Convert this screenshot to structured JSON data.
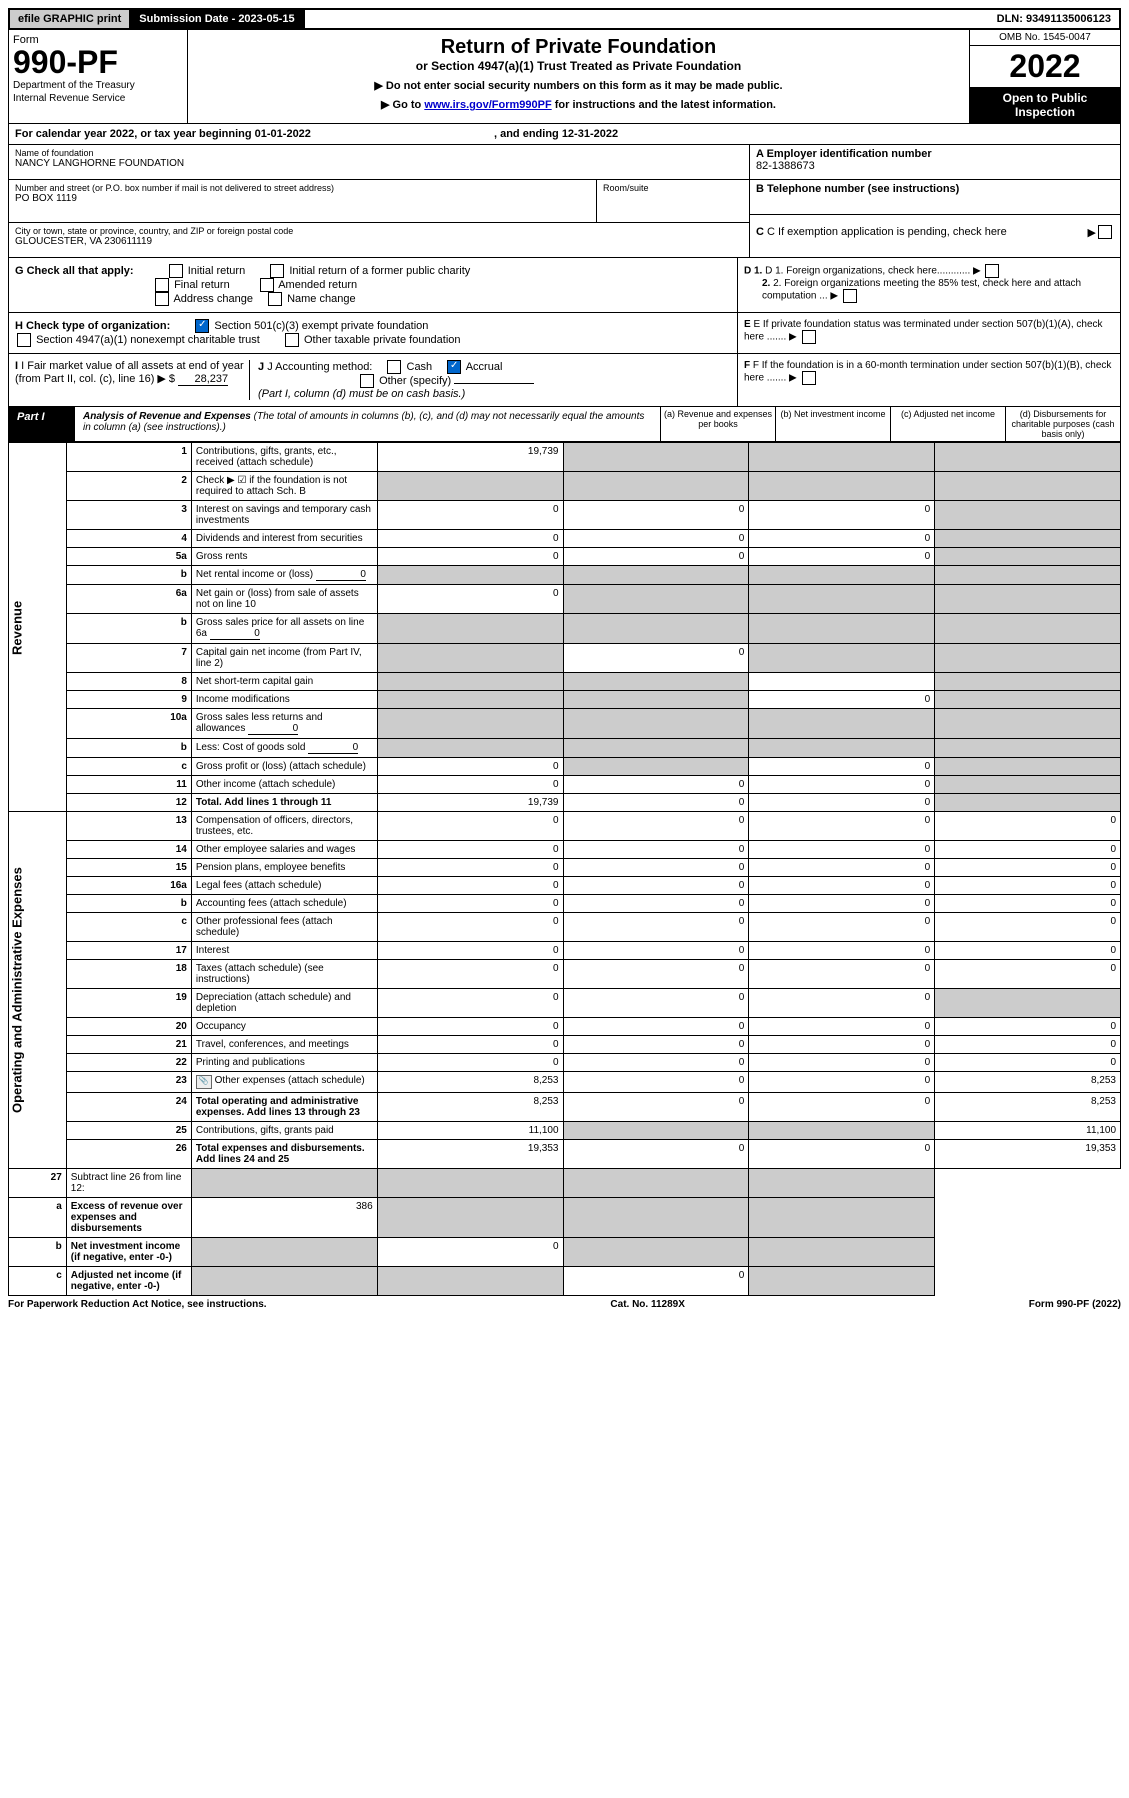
{
  "topbar": {
    "efile": "efile GRAPHIC print",
    "subdate": "Submission Date - 2023-05-15",
    "dln": "DLN: 93491135006123"
  },
  "header": {
    "form": "Form",
    "num": "990-PF",
    "dept": "Department of the Treasury",
    "irs": "Internal Revenue Service",
    "title": "Return of Private Foundation",
    "subtitle": "or Section 4947(a)(1) Trust Treated as Private Foundation",
    "arrow1": "▶ Do not enter social security numbers on this form as it may be made public.",
    "arrow2_pre": "▶ Go to ",
    "arrow2_link": "www.irs.gov/Form990PF",
    "arrow2_post": " for instructions and the latest information.",
    "omb": "OMB No. 1545-0047",
    "year": "2022",
    "open": "Open to Public Inspection"
  },
  "calyear": {
    "text": "For calendar year 2022, or tax year beginning 01-01-2022",
    "end": ", and ending 12-31-2022"
  },
  "ident": {
    "name_label": "Name of foundation",
    "name": "NANCY LANGHORNE FOUNDATION",
    "addr_label": "Number and street (or P.O. box number if mail is not delivered to street address)",
    "addr": "PO BOX 1119",
    "room_label": "Room/suite",
    "city_label": "City or town, state or province, country, and ZIP or foreign postal code",
    "city": "GLOUCESTER, VA  230611119",
    "a_label": "A Employer identification number",
    "ein": "82-1388673",
    "b_label": "B Telephone number (see instructions)",
    "c_label": "C If exemption application is pending, check here",
    "d1": "D 1. Foreign organizations, check here............",
    "d2": "2. Foreign organizations meeting the 85% test, check here and attach computation ...",
    "e": "E  If private foundation status was terminated under section 507(b)(1)(A), check here .......",
    "f": "F  If the foundation is in a 60-month termination under section 507(b)(1)(B), check here .......",
    "g_label": "G Check all that apply:",
    "g_opts": [
      "Initial return",
      "Initial return of a former public charity",
      "Final return",
      "Amended return",
      "Address change",
      "Name change"
    ],
    "h_label": "H Check type of organization:",
    "h_opts": [
      "Section 501(c)(3) exempt private foundation",
      "Section 4947(a)(1) nonexempt charitable trust",
      "Other taxable private foundation"
    ],
    "i_label": "I Fair market value of all assets at end of year (from Part II, col. (c), line 16) ▶ $",
    "i_val": "28,237",
    "j_label": "J Accounting method:",
    "j_cash": "Cash",
    "j_accrual": "Accrual",
    "j_other": "Other (specify)",
    "j_note": "(Part I, column (d) must be on cash basis.)"
  },
  "part1": {
    "label": "Part I",
    "title": "Analysis of Revenue and Expenses",
    "note": "(The total of amounts in columns (b), (c), and (d) may not necessarily equal the amounts in column (a) (see instructions).)",
    "cols": {
      "a": "(a) Revenue and expenses per books",
      "b": "(b) Net investment income",
      "c": "(c) Adjusted net income",
      "d": "(d) Disbursements for charitable purposes (cash basis only)"
    }
  },
  "sections": {
    "revenue": "Revenue",
    "expenses": "Operating and Administrative Expenses"
  },
  "rows": [
    {
      "n": "1",
      "d": "Contributions, gifts, grants, etc., received (attach schedule)",
      "a": "19,739",
      "b": "",
      "c": "",
      "dd": "",
      "shade": [
        "b",
        "c",
        "dd"
      ]
    },
    {
      "n": "2",
      "d": "Check ▶ ☑ if the foundation is not required to attach Sch. B",
      "a": "",
      "b": "",
      "c": "",
      "dd": "",
      "shade": [
        "a",
        "b",
        "c",
        "dd"
      ],
      "allshade": true
    },
    {
      "n": "3",
      "d": "Interest on savings and temporary cash investments",
      "a": "0",
      "b": "0",
      "c": "0",
      "dd": "",
      "shade": [
        "dd"
      ]
    },
    {
      "n": "4",
      "d": "Dividends and interest from securities",
      "a": "0",
      "b": "0",
      "c": "0",
      "dd": "",
      "shade": [
        "dd"
      ]
    },
    {
      "n": "5a",
      "d": "Gross rents",
      "a": "0",
      "b": "0",
      "c": "0",
      "dd": "",
      "shade": [
        "dd"
      ]
    },
    {
      "n": "b",
      "d": "Net rental income or (loss)",
      "a": "",
      "b": "",
      "c": "",
      "dd": "",
      "inline_val": "0",
      "shade": [
        "a",
        "b",
        "c",
        "dd"
      ]
    },
    {
      "n": "6a",
      "d": "Net gain or (loss) from sale of assets not on line 10",
      "a": "0",
      "b": "",
      "c": "",
      "dd": "",
      "shade": [
        "b",
        "c",
        "dd"
      ]
    },
    {
      "n": "b",
      "d": "Gross sales price for all assets on line 6a",
      "a": "",
      "b": "",
      "c": "",
      "dd": "",
      "inline_val": "0",
      "shade": [
        "a",
        "b",
        "c",
        "dd"
      ]
    },
    {
      "n": "7",
      "d": "Capital gain net income (from Part IV, line 2)",
      "a": "",
      "b": "0",
      "c": "",
      "dd": "",
      "shade": [
        "a",
        "c",
        "dd"
      ]
    },
    {
      "n": "8",
      "d": "Net short-term capital gain",
      "a": "",
      "b": "",
      "c": "",
      "dd": "",
      "shade": [
        "a",
        "b",
        "dd"
      ]
    },
    {
      "n": "9",
      "d": "Income modifications",
      "a": "",
      "b": "",
      "c": "0",
      "dd": "",
      "shade": [
        "a",
        "b",
        "dd"
      ]
    },
    {
      "n": "10a",
      "d": "Gross sales less returns and allowances",
      "a": "",
      "b": "",
      "c": "",
      "dd": "",
      "inline_val": "0",
      "shade": [
        "a",
        "b",
        "c",
        "dd"
      ]
    },
    {
      "n": "b",
      "d": "Less: Cost of goods sold",
      "a": "",
      "b": "",
      "c": "",
      "dd": "",
      "inline_val": "0",
      "shade": [
        "a",
        "b",
        "c",
        "dd"
      ]
    },
    {
      "n": "c",
      "d": "Gross profit or (loss) (attach schedule)",
      "a": "0",
      "b": "",
      "c": "0",
      "dd": "",
      "shade": [
        "b",
        "dd"
      ]
    },
    {
      "n": "11",
      "d": "Other income (attach schedule)",
      "a": "0",
      "b": "0",
      "c": "0",
      "dd": "",
      "shade": [
        "dd"
      ]
    },
    {
      "n": "12",
      "d": "Total. Add lines 1 through 11",
      "a": "19,739",
      "b": "0",
      "c": "0",
      "dd": "",
      "shade": [
        "dd"
      ],
      "bold": true
    }
  ],
  "exp_rows": [
    {
      "n": "13",
      "d": "Compensation of officers, directors, trustees, etc.",
      "a": "0",
      "b": "0",
      "c": "0",
      "dd": "0"
    },
    {
      "n": "14",
      "d": "Other employee salaries and wages",
      "a": "0",
      "b": "0",
      "c": "0",
      "dd": "0"
    },
    {
      "n": "15",
      "d": "Pension plans, employee benefits",
      "a": "0",
      "b": "0",
      "c": "0",
      "dd": "0"
    },
    {
      "n": "16a",
      "d": "Legal fees (attach schedule)",
      "a": "0",
      "b": "0",
      "c": "0",
      "dd": "0"
    },
    {
      "n": "b",
      "d": "Accounting fees (attach schedule)",
      "a": "0",
      "b": "0",
      "c": "0",
      "dd": "0"
    },
    {
      "n": "c",
      "d": "Other professional fees (attach schedule)",
      "a": "0",
      "b": "0",
      "c": "0",
      "dd": "0"
    },
    {
      "n": "17",
      "d": "Interest",
      "a": "0",
      "b": "0",
      "c": "0",
      "dd": "0"
    },
    {
      "n": "18",
      "d": "Taxes (attach schedule) (see instructions)",
      "a": "0",
      "b": "0",
      "c": "0",
      "dd": "0"
    },
    {
      "n": "19",
      "d": "Depreciation (attach schedule) and depletion",
      "a": "0",
      "b": "0",
      "c": "0",
      "dd": "",
      "shade": [
        "dd"
      ]
    },
    {
      "n": "20",
      "d": "Occupancy",
      "a": "0",
      "b": "0",
      "c": "0",
      "dd": "0"
    },
    {
      "n": "21",
      "d": "Travel, conferences, and meetings",
      "a": "0",
      "b": "0",
      "c": "0",
      "dd": "0"
    },
    {
      "n": "22",
      "d": "Printing and publications",
      "a": "0",
      "b": "0",
      "c": "0",
      "dd": "0"
    },
    {
      "n": "23",
      "d": "Other expenses (attach schedule)",
      "a": "8,253",
      "b": "0",
      "c": "0",
      "dd": "8,253",
      "icon": true
    },
    {
      "n": "24",
      "d": "Total operating and administrative expenses. Add lines 13 through 23",
      "a": "8,253",
      "b": "0",
      "c": "0",
      "dd": "8,253",
      "bold": true
    },
    {
      "n": "25",
      "d": "Contributions, gifts, grants paid",
      "a": "11,100",
      "b": "",
      "c": "",
      "dd": "11,100",
      "shade": [
        "b",
        "c"
      ]
    },
    {
      "n": "26",
      "d": "Total expenses and disbursements. Add lines 24 and 25",
      "a": "19,353",
      "b": "0",
      "c": "0",
      "dd": "19,353",
      "bold": true
    }
  ],
  "sub_rows": [
    {
      "n": "27",
      "d": "Subtract line 26 from line 12:",
      "a": "",
      "b": "",
      "c": "",
      "dd": "",
      "shade": [
        "a",
        "b",
        "c",
        "dd"
      ]
    },
    {
      "n": "a",
      "d": "Excess of revenue over expenses and disbursements",
      "a": "386",
      "b": "",
      "c": "",
      "dd": "",
      "shade": [
        "b",
        "c",
        "dd"
      ],
      "bold": true
    },
    {
      "n": "b",
      "d": "Net investment income (if negative, enter -0-)",
      "a": "",
      "b": "0",
      "c": "",
      "dd": "",
      "shade": [
        "a",
        "c",
        "dd"
      ],
      "bold": true
    },
    {
      "n": "c",
      "d": "Adjusted net income (if negative, enter -0-)",
      "a": "",
      "b": "",
      "c": "0",
      "dd": "",
      "shade": [
        "a",
        "b",
        "dd"
      ],
      "bold": true
    }
  ],
  "footer": {
    "left": "For Paperwork Reduction Act Notice, see instructions.",
    "mid": "Cat. No. 11289X",
    "right": "Form 990-PF (2022)"
  }
}
